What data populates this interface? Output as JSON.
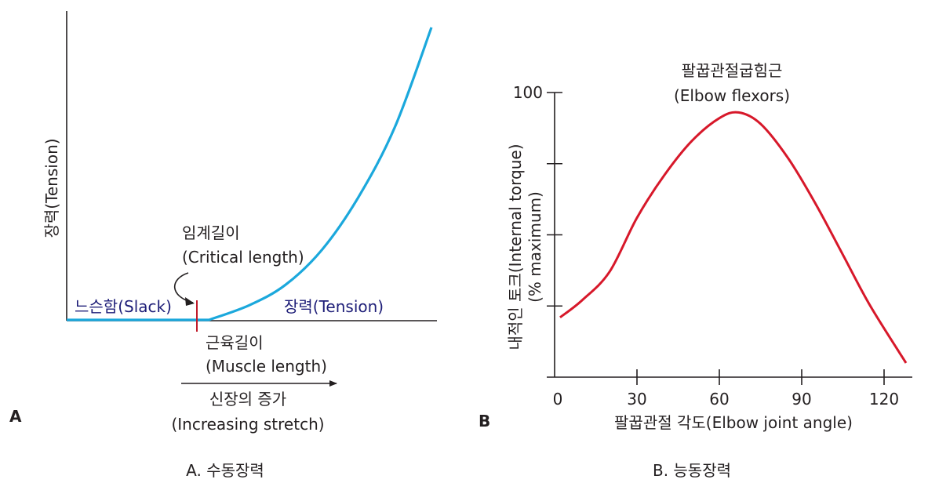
{
  "colors": {
    "passive_curve": "#1ba8dc",
    "active_curve": "#d7182a",
    "axis": "#231f20",
    "slack_text": "#1e1e78",
    "critical_marker": "#c01a2a"
  },
  "panels": {
    "a": {
      "letter": "A",
      "caption": "A. 수동장력",
      "ylabel": "장력(Tension)",
      "critical_label_ko": "임계길이",
      "critical_label_en": "(Critical length)",
      "slack_label": "느슨함(Slack)",
      "tension_label": "장력(Tension)",
      "xlabel_ko": "근육길이",
      "xlabel_en": "(Muscle length)",
      "arrow_label_ko": "신장의 증가",
      "arrow_label_en": "(Increasing stretch)"
    },
    "b": {
      "letter": "B",
      "caption": "B. 능동장력",
      "title_ko": "팔꿉관절굽힘근",
      "title_en": "(Elbow flexors)",
      "ylabel_line1": "내적인 토크(Internal torque)",
      "ylabel_line2": "(% maximum)",
      "xlabel": "팔꿉관절 각도(Elbow joint angle)",
      "y_tick_top": "100"
    }
  },
  "chart_data": [
    {
      "type": "line",
      "title": "A. 수동장력",
      "xlabel": "근육길이 (Muscle length)",
      "ylabel": "장력(Tension)",
      "series": [
        {
          "name": "장력(Tension)",
          "x": [
            0.0,
            0.39,
            0.5,
            0.6,
            0.7,
            0.8,
            0.9,
            1.0
          ],
          "y": [
            0.0,
            0.0,
            0.05,
            0.12,
            0.24,
            0.42,
            0.66,
            1.0
          ]
        }
      ],
      "annotations": [
        "느슨함(Slack)",
        "임계길이 (Critical length)",
        "신장의 증가 (Increasing stretch)"
      ]
    },
    {
      "type": "line",
      "title": "팔꿉관절굽힘근 (Elbow flexors)",
      "xlabel": "팔꿉관절 각도(Elbow joint angle)",
      "ylabel": "내적인 토크(Internal torque) (% maximum)",
      "x_ticks": [
        0,
        30,
        60,
        90,
        120
      ],
      "y_ticks": [
        "",
        "",
        "",
        "100"
      ],
      "xlim": [
        0,
        130
      ],
      "ylim": [
        0,
        100
      ],
      "series": [
        {
          "name": "팔꿉관절굽힘근 (Elbow flexors)",
          "x": [
            2,
            10,
            20,
            30,
            40,
            50,
            60,
            67,
            75,
            85,
            95,
            105,
            115,
            128
          ],
          "y": [
            21,
            27,
            37,
            56,
            71,
            83,
            91,
            93,
            89,
            77,
            61,
            43,
            25,
            5
          ]
        }
      ]
    }
  ]
}
